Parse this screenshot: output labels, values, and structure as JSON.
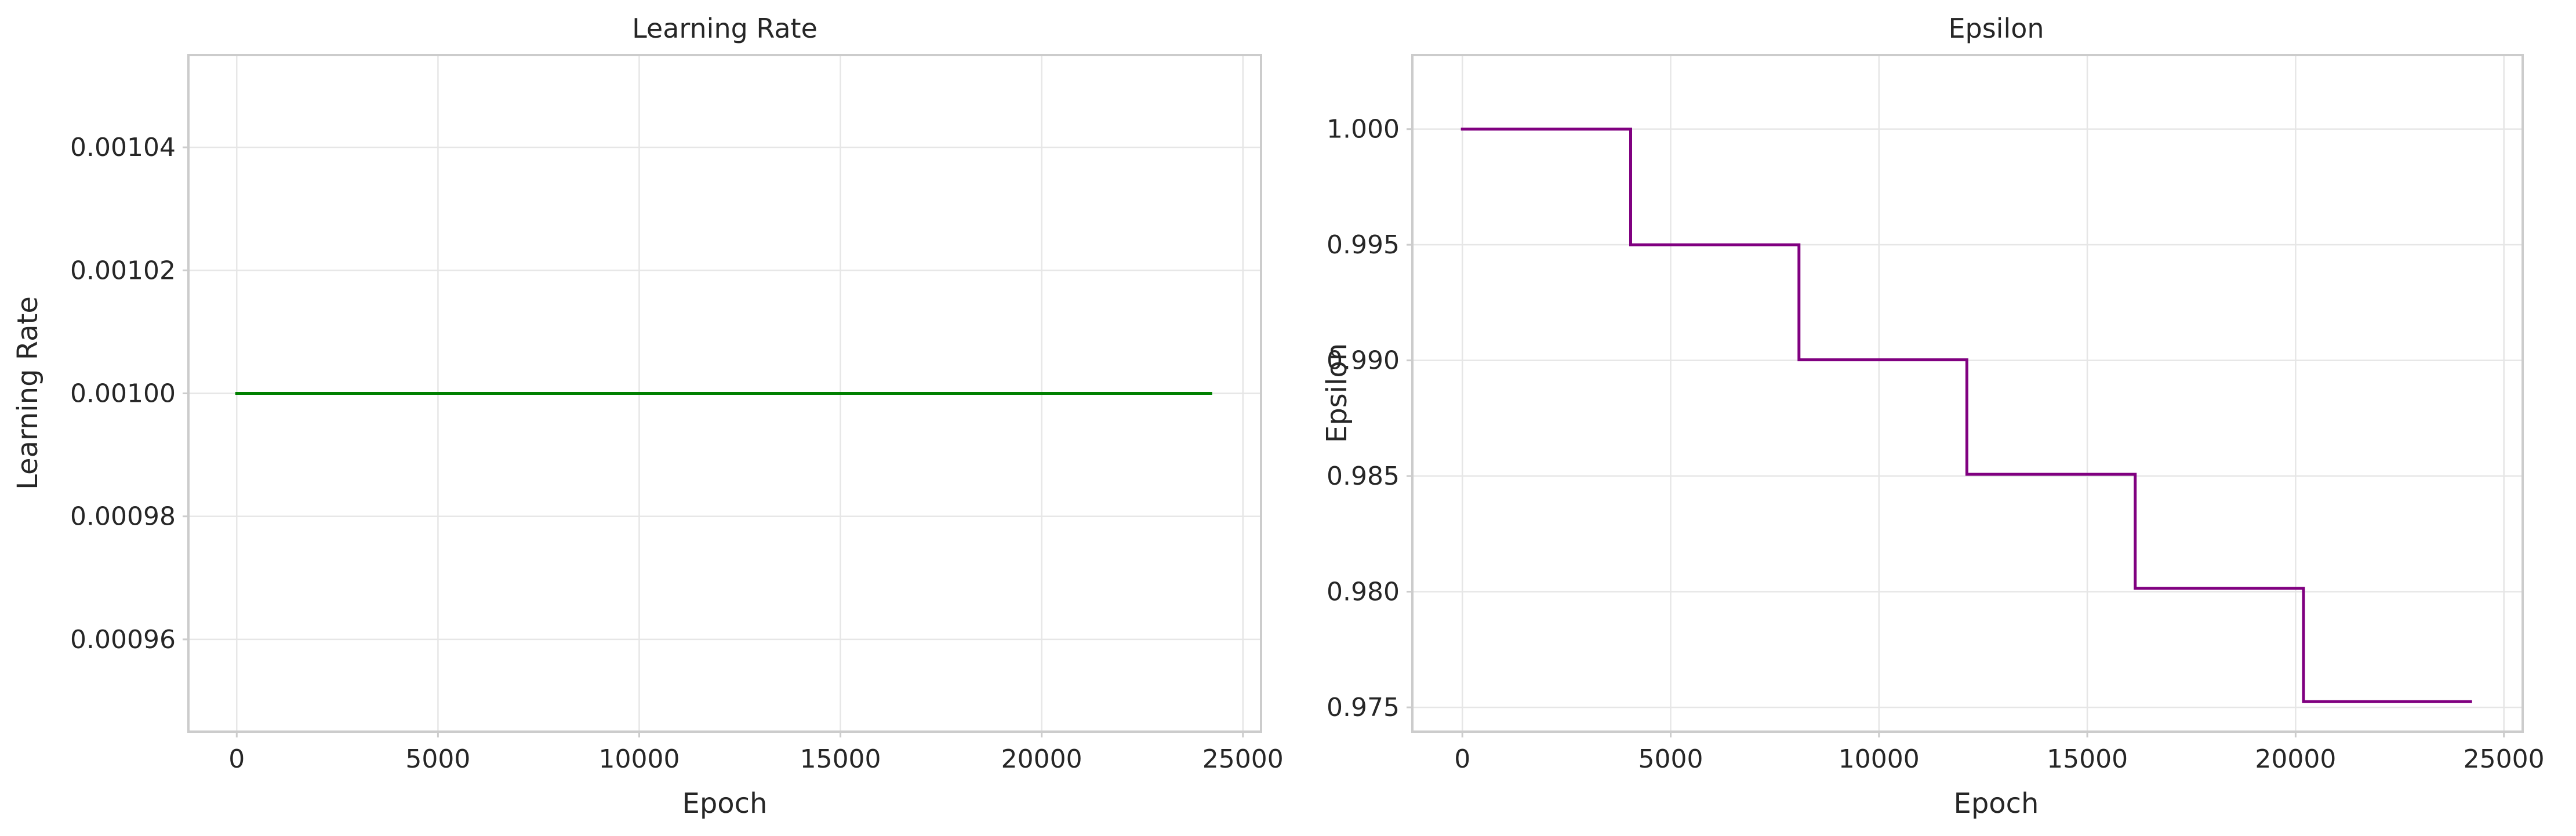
{
  "chart_data": [
    {
      "type": "line",
      "title": "Learning Rate",
      "xlabel": "Epoch",
      "ylabel": "Learning Rate",
      "xlim": [
        -1200,
        25450
      ],
      "ylim": [
        0.000945,
        0.001055
      ],
      "xticks": [
        0,
        5000,
        10000,
        15000,
        20000,
        25000
      ],
      "xtick_labels": [
        "0",
        "5000",
        "10000",
        "15000",
        "20000",
        "25000"
      ],
      "yticks": [
        0.00096,
        0.00098,
        0.001,
        0.00102,
        0.00104
      ],
      "ytick_labels": [
        "0.00096",
        "0.00098",
        "0.00100",
        "0.00102",
        "0.00104"
      ],
      "grid": true,
      "series": [
        {
          "color": "#008000",
          "step": false,
          "x": [
            0,
            24200
          ],
          "y": [
            0.001,
            0.001
          ]
        }
      ]
    },
    {
      "type": "line",
      "title": "Epsilon",
      "xlabel": "Epoch",
      "ylabel": "Epsilon",
      "xlim": [
        -1200,
        25450
      ],
      "ylim": [
        0.97395,
        1.0032
      ],
      "xticks": [
        0,
        5000,
        10000,
        15000,
        20000,
        25000
      ],
      "xtick_labels": [
        "0",
        "5000",
        "10000",
        "15000",
        "20000",
        "25000"
      ],
      "yticks": [
        0.975,
        0.98,
        0.985,
        0.99,
        0.995,
        1.0
      ],
      "ytick_labels": [
        "0.975",
        "0.980",
        "0.985",
        "0.990",
        "0.995",
        "1.000"
      ],
      "grid": true,
      "series": [
        {
          "color": "#800080",
          "step": true,
          "x": [
            0,
            4040,
            8080,
            12110,
            16150,
            20190,
            24200
          ],
          "y": [
            1.0,
            0.995,
            0.990025,
            0.985075,
            0.980149,
            0.975248,
            0.975248
          ]
        }
      ]
    }
  ]
}
